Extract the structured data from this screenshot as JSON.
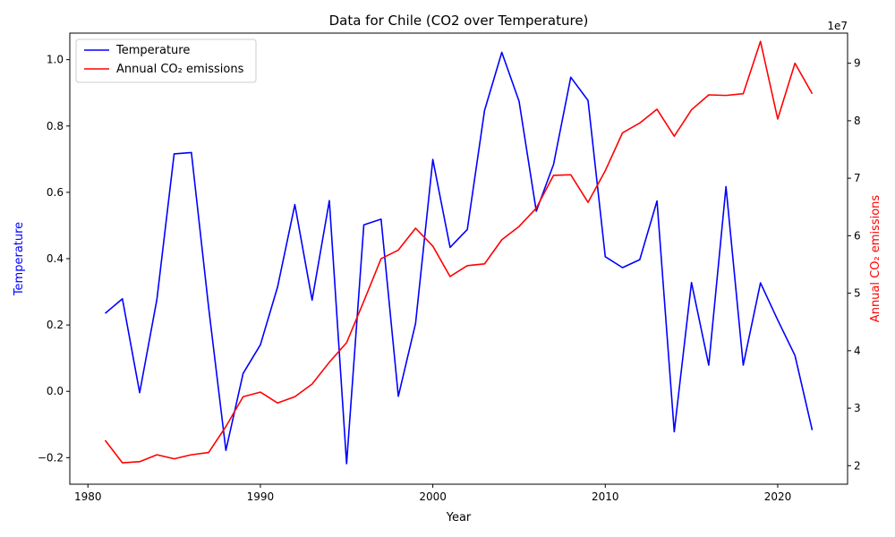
{
  "chart_data": {
    "type": "line",
    "title": "Data for Chile (CO2 over Temperature)",
    "xlabel": "Year",
    "xlim": [
      1978.95,
      2024.05
    ],
    "x_ticks": [
      1980,
      1990,
      2000,
      2010,
      2020
    ],
    "x": [
      1981,
      1982,
      1983,
      1984,
      1985,
      1986,
      1987,
      1988,
      1989,
      1990,
      1991,
      1992,
      1993,
      1994,
      1995,
      1996,
      1997,
      1998,
      1999,
      2000,
      2001,
      2002,
      2003,
      2004,
      2005,
      2006,
      2007,
      2008,
      2009,
      2010,
      2011,
      2012,
      2013,
      2014,
      2015,
      2016,
      2017,
      2018,
      2019,
      2020,
      2021,
      2022
    ],
    "left_axis": {
      "label": "Temperature",
      "color": "#0000ff",
      "ylim": [
        -0.28,
        1.08
      ],
      "ticks": [
        -0.2,
        0.0,
        0.2,
        0.4,
        0.6,
        0.8,
        1.0
      ],
      "tick_labels": [
        "−0.2",
        "0.0",
        "0.2",
        "0.4",
        "0.6",
        "0.8",
        "1.0"
      ]
    },
    "right_axis": {
      "label": "Annual CO₂ emissions",
      "color": "#ff0000",
      "ylim": [
        16780000,
        95240000
      ],
      "ticks": [
        20000000,
        30000000,
        40000000,
        50000000,
        60000000,
        70000000,
        80000000,
        90000000
      ],
      "tick_labels": [
        "2",
        "3",
        "4",
        "5",
        "6",
        "7",
        "8",
        "9"
      ],
      "offset_label": "1e7"
    },
    "series": [
      {
        "name": "Temperature",
        "axis": "left",
        "color": "#0000ff",
        "values": [
          0.235,
          0.279,
          -0.004,
          0.277,
          0.716,
          0.72,
          0.253,
          -0.178,
          0.054,
          0.14,
          0.315,
          0.563,
          0.275,
          0.575,
          -0.218,
          0.502,
          0.519,
          -0.015,
          0.205,
          0.699,
          0.434,
          0.488,
          0.847,
          1.022,
          0.875,
          0.543,
          0.684,
          0.947,
          0.877,
          0.406,
          0.373,
          0.397,
          0.574,
          -0.122,
          0.328,
          0.079,
          0.617,
          0.079,
          0.327,
          0.215,
          0.108,
          -0.117
        ]
      },
      {
        "name": "Annual CO₂ emissions",
        "axis": "right",
        "color": "#ff0000",
        "values": [
          24400000,
          20500000,
          20700000,
          21900000,
          21200000,
          21900000,
          22300000,
          26800000,
          32000000,
          32800000,
          30900000,
          32000000,
          34200000,
          38000000,
          41400000,
          48600000,
          56000000,
          57500000,
          61300000,
          58200000,
          52900000,
          54800000,
          55100000,
          59300000,
          61600000,
          64800000,
          70500000,
          70600000,
          65800000,
          71300000,
          77900000,
          79600000,
          82000000,
          77300000,
          81900000,
          84500000,
          84400000,
          84700000,
          93800000,
          80300000,
          90000000,
          84700000
        ]
      }
    ],
    "legend_position": "top-left",
    "grid": false
  }
}
